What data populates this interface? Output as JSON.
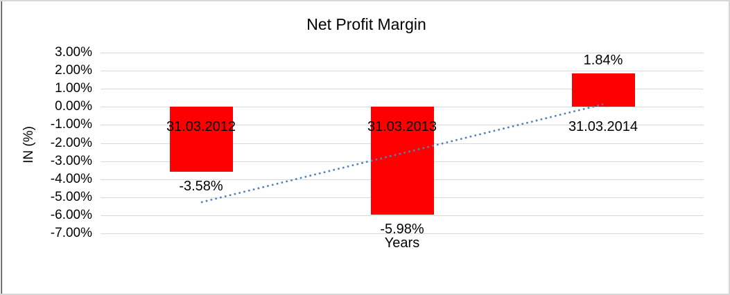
{
  "window": {
    "background": "#ffffff",
    "border_color": "#d7d7d7",
    "left_edge_color": "#262626"
  },
  "chart_data": {
    "type": "bar",
    "title": "Net Profit Margin",
    "xlabel": "Years",
    "ylabel": "IN (%)",
    "categories": [
      "31.03.2012",
      "31.03.2013",
      "31.03.2014"
    ],
    "series": [
      {
        "name": "Net Profit Margin",
        "values": [
          -3.58,
          -5.98,
          1.84
        ],
        "color": "#ff0000"
      }
    ],
    "data_labels": [
      "-3.58%",
      "-5.98%",
      "1.84%"
    ],
    "y_ticks": [
      {
        "label": "3.00%",
        "value": 3
      },
      {
        "label": "2.00%",
        "value": 2
      },
      {
        "label": "1.00%",
        "value": 1
      },
      {
        "label": "0.00%",
        "value": 0
      },
      {
        "label": "-1.00%",
        "value": -1
      },
      {
        "label": "-2.00%",
        "value": -2
      },
      {
        "label": "-3.00%",
        "value": -3
      },
      {
        "label": "-4.00%",
        "value": -4
      },
      {
        "label": "-5.00%",
        "value": -5
      },
      {
        "label": "-6.00%",
        "value": -6
      },
      {
        "label": "-7.00%",
        "value": -7
      }
    ],
    "ylim": [
      -7,
      3
    ],
    "grid": true,
    "gridline_color": "#d9d9d9",
    "bar_color": "#ff0000",
    "text_color": "#000000",
    "trendline": {
      "type": "linear",
      "style": "dotted",
      "color": "#4f81bd",
      "start_value": -5.28,
      "end_value": 0.14
    },
    "legend": "none"
  }
}
